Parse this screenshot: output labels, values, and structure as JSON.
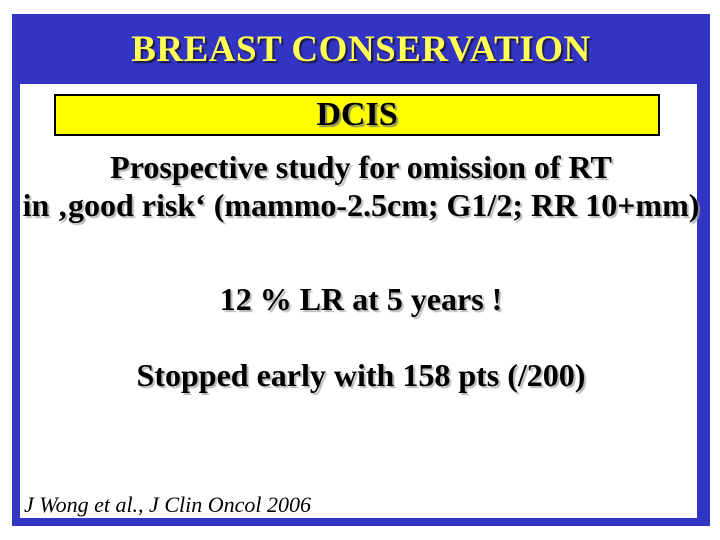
{
  "slide": {
    "title": "BREAST CONSERVATION",
    "dcis_label": "DCIS",
    "body": {
      "line1": "Prospective study for omission of RT",
      "line2": "in ‚good risk‘ (mammo-2.5cm; G1/2; RR 10+mm)"
    },
    "result_line": "12 % LR at 5 years !",
    "status_line": "Stopped early with 158 pts (/200)",
    "citation": "J Wong et al., J Clin Oncol 2006"
  },
  "colors": {
    "frame_blue": "#3333C4",
    "box_yellow": "#FFFF00",
    "title_yellow": "#FFFF55",
    "text_black": "#000000",
    "background_white": "#FFFFFF"
  }
}
